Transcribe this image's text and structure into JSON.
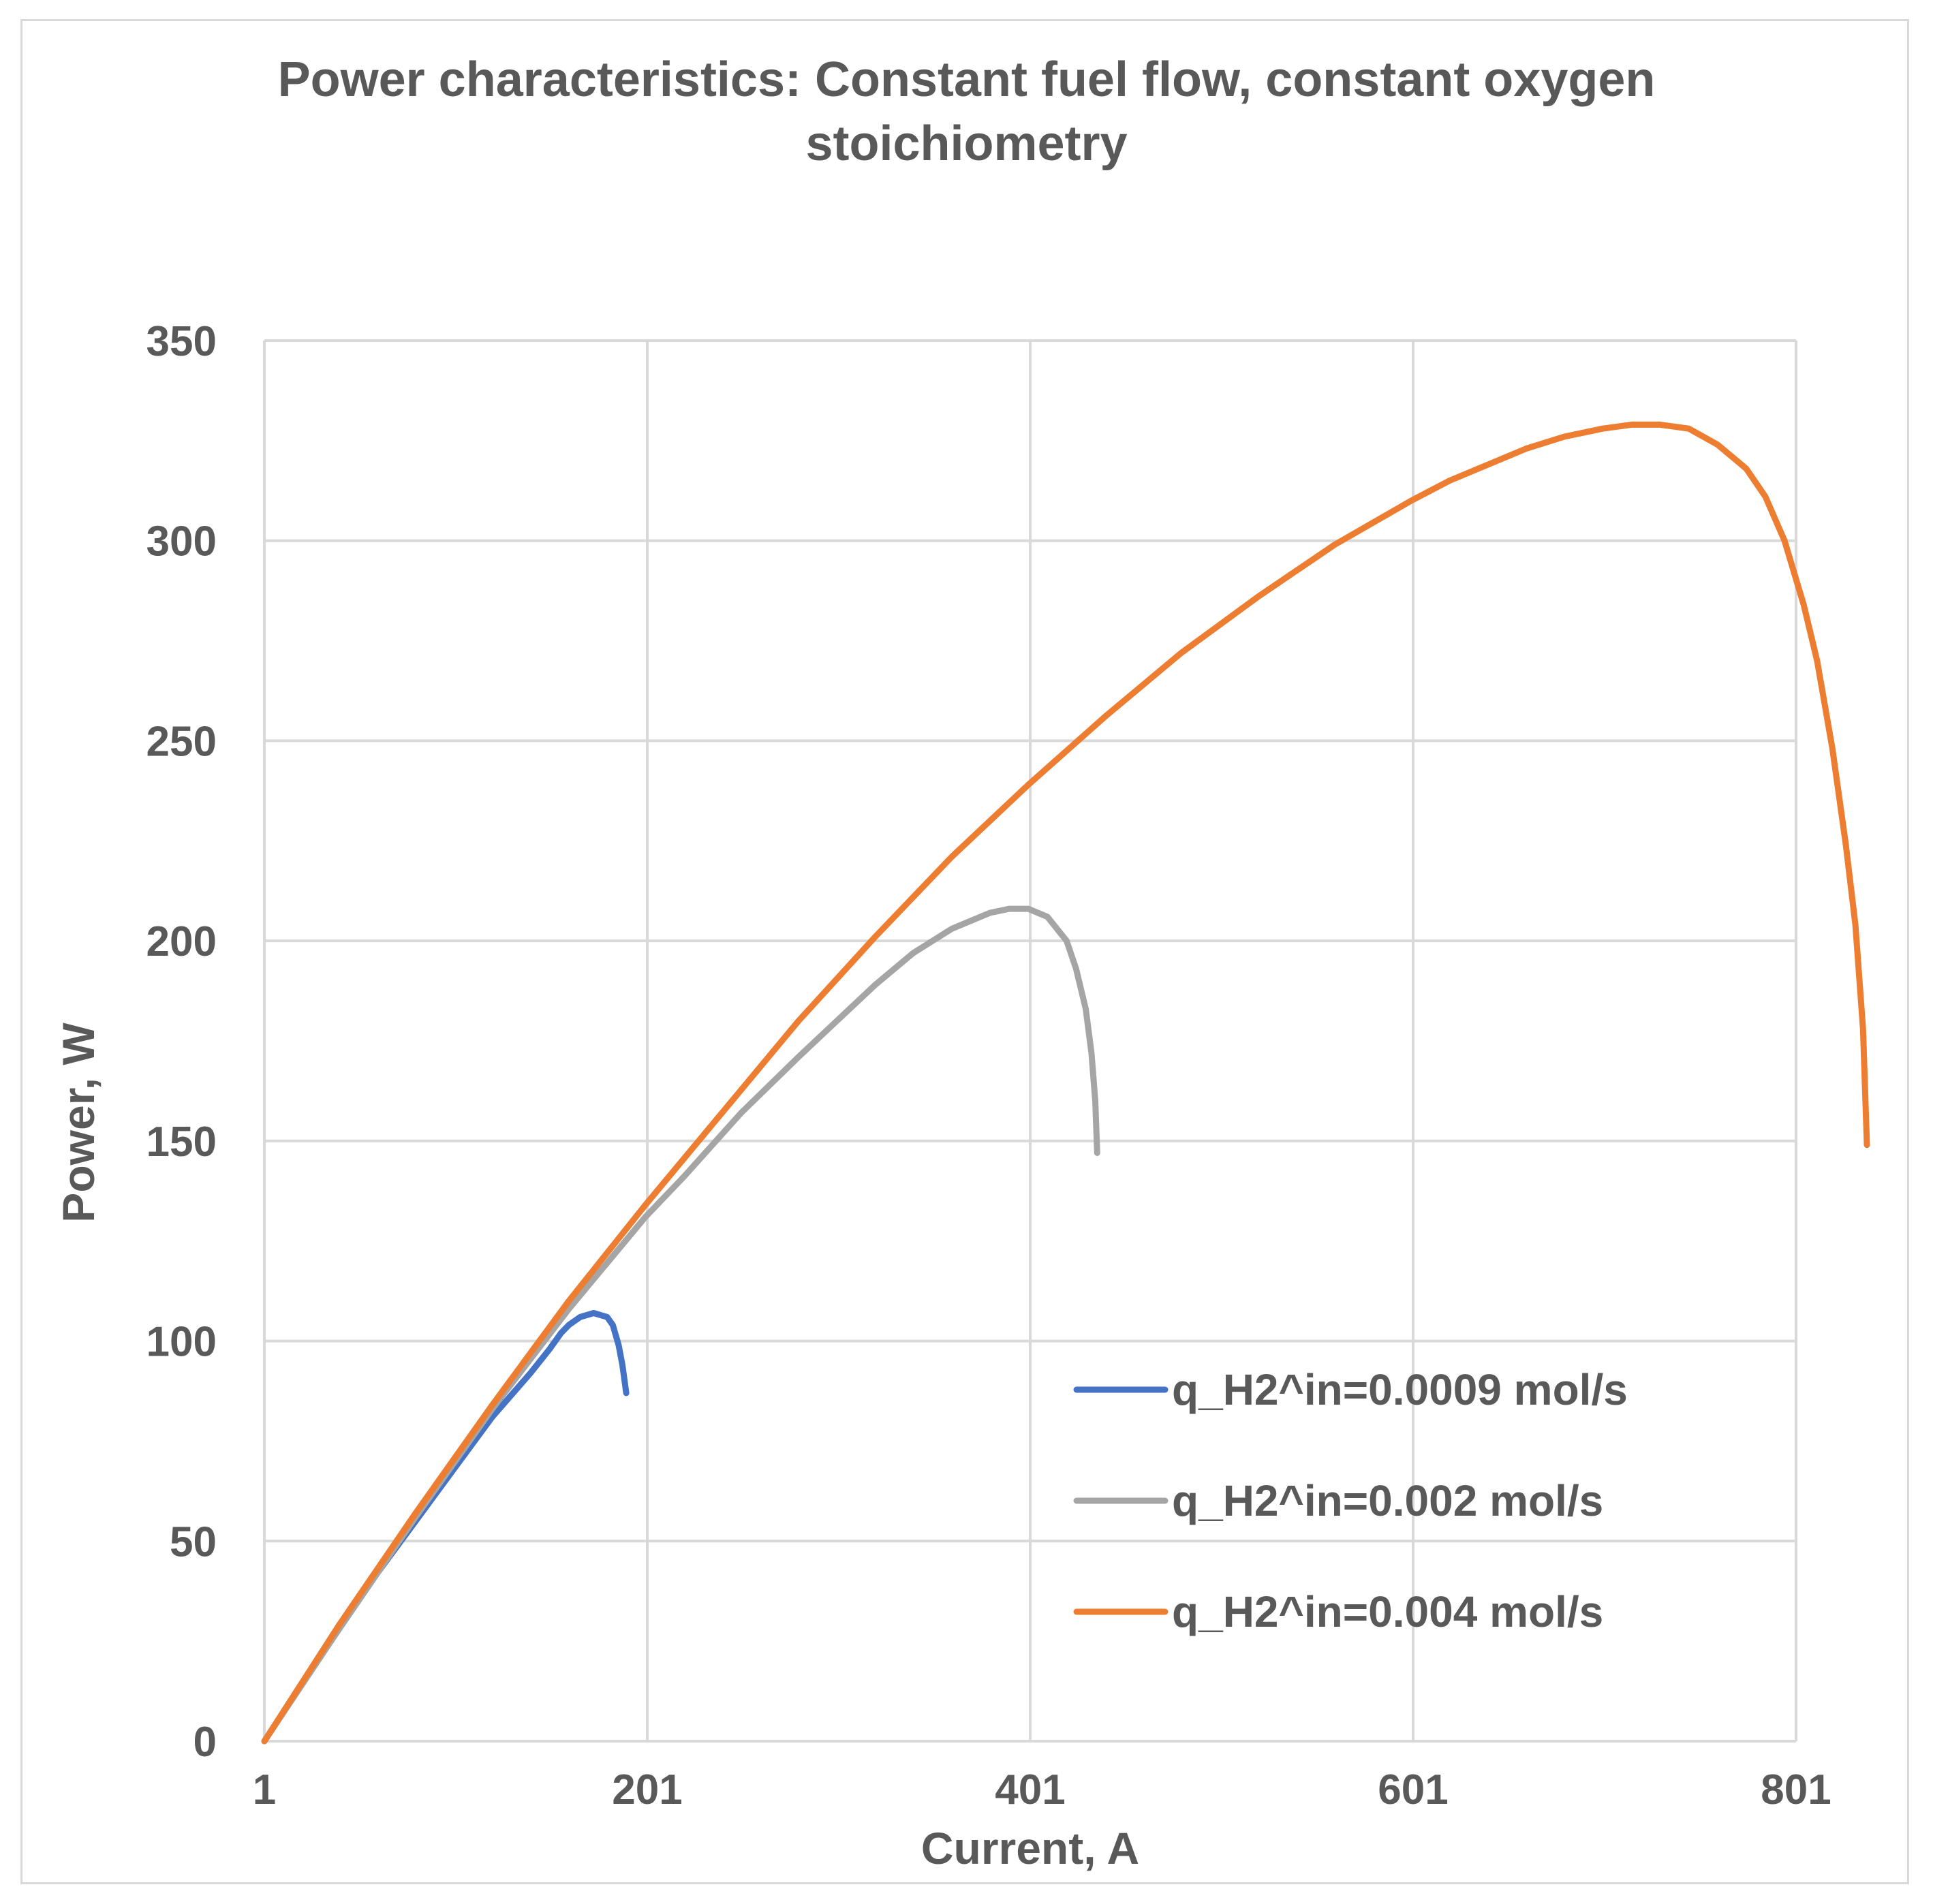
{
  "chart_data": {
    "type": "line",
    "title_lines": [
      "Power characteristics: Constant fuel flow, constant oxygen",
      "stoichiometry"
    ],
    "xlabel": "Current, A",
    "ylabel": "Power, W",
    "xlim": [
      1,
      801
    ],
    "ylim": [
      0,
      350
    ],
    "x_ticks": [
      1,
      201,
      401,
      601,
      801
    ],
    "x_tick_labels": [
      "1",
      "201",
      "401",
      "601",
      "801"
    ],
    "y_ticks": [
      0,
      50,
      100,
      150,
      200,
      250,
      300,
      350
    ],
    "y_tick_labels": [
      "0",
      "50",
      "100",
      "150",
      "200",
      "250",
      "300",
      "350"
    ],
    "grid": true,
    "legend_position": "lower-right",
    "series": [
      {
        "name": "q_H2^in=0.0009 mol/s",
        "color": "#4472c4",
        "points": [
          [
            1,
            0
          ],
          [
            20,
            14
          ],
          [
            40,
            28
          ],
          [
            60,
            42
          ],
          [
            80,
            55
          ],
          [
            100,
            68
          ],
          [
            120,
            81
          ],
          [
            140,
            92
          ],
          [
            150,
            98
          ],
          [
            156,
            102
          ],
          [
            160,
            104
          ],
          [
            166,
            106
          ],
          [
            173,
            107
          ],
          [
            180,
            106
          ],
          [
            183,
            104
          ],
          [
            186,
            99
          ],
          [
            188,
            94
          ],
          [
            190,
            87
          ]
        ]
      },
      {
        "name": "q_H2^in=0.002 mol/s",
        "color": "#a5a5a5",
        "points": [
          [
            1,
            0
          ],
          [
            40,
            28
          ],
          [
            80,
            56
          ],
          [
            120,
            83
          ],
          [
            160,
            108
          ],
          [
            200,
            131
          ],
          [
            220,
            141
          ],
          [
            250,
            157
          ],
          [
            280,
            171
          ],
          [
            300,
            180
          ],
          [
            320,
            189
          ],
          [
            340,
            197
          ],
          [
            360,
            203
          ],
          [
            380,
            207
          ],
          [
            390,
            208
          ],
          [
            400,
            208
          ],
          [
            410,
            206
          ],
          [
            420,
            200
          ],
          [
            425,
            193
          ],
          [
            430,
            183
          ],
          [
            433,
            172
          ],
          [
            435,
            160
          ],
          [
            436,
            147
          ]
        ]
      },
      {
        "name": "q_H2^in=0.004 mol/s",
        "color": "#ed7d31",
        "points": [
          [
            1,
            0
          ],
          [
            40,
            29
          ],
          [
            80,
            57
          ],
          [
            120,
            84
          ],
          [
            160,
            110
          ],
          [
            200,
            134
          ],
          [
            240,
            157
          ],
          [
            280,
            180
          ],
          [
            320,
            201
          ],
          [
            360,
            221
          ],
          [
            400,
            239
          ],
          [
            440,
            256
          ],
          [
            480,
            272
          ],
          [
            520,
            286
          ],
          [
            560,
            299
          ],
          [
            600,
            310
          ],
          [
            620,
            315
          ],
          [
            640,
            319
          ],
          [
            660,
            323
          ],
          [
            680,
            326
          ],
          [
            700,
            328
          ],
          [
            715,
            329
          ],
          [
            730,
            329
          ],
          [
            745,
            328
          ],
          [
            760,
            324
          ],
          [
            775,
            318
          ],
          [
            785,
            311
          ],
          [
            795,
            300
          ],
          [
            805,
            284
          ],
          [
            812,
            270
          ],
          [
            820,
            248
          ],
          [
            827,
            224
          ],
          [
            832,
            204
          ],
          [
            836,
            178
          ],
          [
            838,
            149
          ]
        ]
      }
    ]
  }
}
